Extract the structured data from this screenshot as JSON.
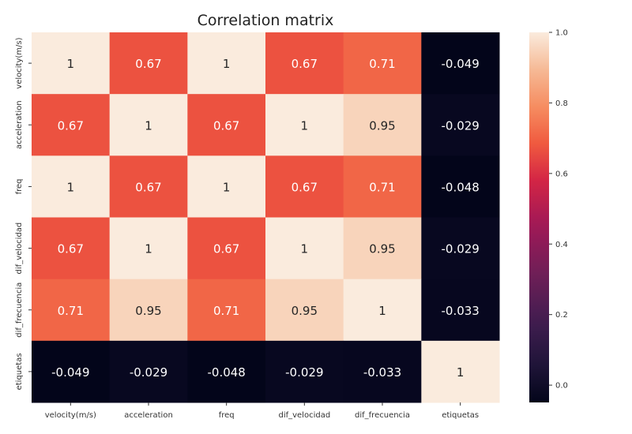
{
  "chart_data": {
    "type": "heatmap",
    "title": "Correlation matrix",
    "labels": [
      "velocity(m/s)",
      "acceleration",
      "freq",
      "dif_velocidad",
      "dif_frecuencia",
      "etiquetas"
    ],
    "values": [
      [
        1,
        0.67,
        1,
        0.67,
        0.71,
        -0.049
      ],
      [
        0.67,
        1,
        0.67,
        1,
        0.95,
        -0.029
      ],
      [
        1,
        0.67,
        1,
        0.67,
        0.71,
        -0.048
      ],
      [
        0.67,
        1,
        0.67,
        1,
        0.95,
        -0.029
      ],
      [
        0.71,
        0.95,
        0.71,
        0.95,
        1,
        -0.033
      ],
      [
        -0.049,
        -0.029,
        -0.048,
        -0.029,
        -0.033,
        1
      ]
    ],
    "annotations": [
      [
        "1",
        "0.67",
        "1",
        "0.67",
        "0.71",
        "-0.049"
      ],
      [
        "0.67",
        "1",
        "0.67",
        "1",
        "0.95",
        "-0.029"
      ],
      [
        "1",
        "0.67",
        "1",
        "0.67",
        "0.71",
        "-0.048"
      ],
      [
        "0.67",
        "1",
        "0.67",
        "1",
        "0.95",
        "-0.029"
      ],
      [
        "0.71",
        "0.95",
        "0.71",
        "0.95",
        "1",
        "-0.033"
      ],
      [
        "-0.049",
        "-0.029",
        "-0.048",
        "-0.029",
        "-0.033",
        "1"
      ]
    ],
    "colorbar": {
      "range": [
        -0.049,
        1
      ],
      "ticks": [
        0.0,
        0.2,
        0.4,
        0.6,
        0.8,
        1.0
      ],
      "tick_labels": [
        "0.0",
        "0.2",
        "0.4",
        "0.6",
        "0.8",
        "1.0"
      ],
      "colormap": "rocket"
    }
  }
}
